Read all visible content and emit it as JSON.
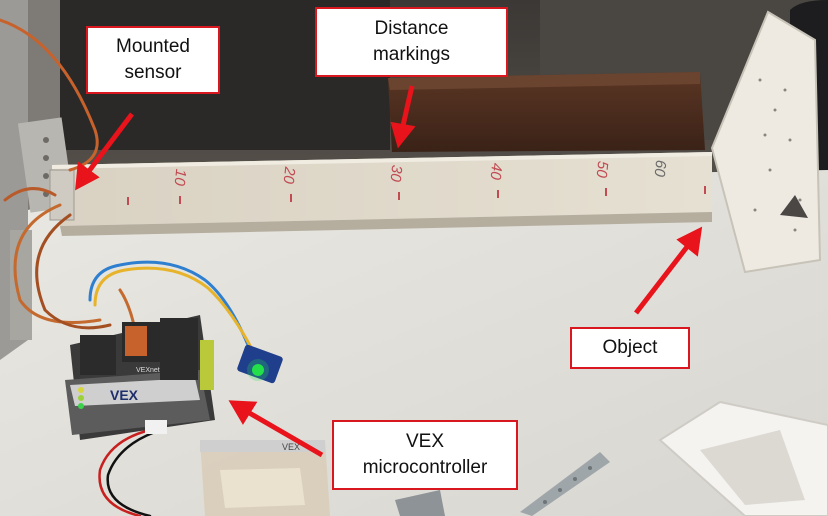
{
  "callouts": {
    "mounted_sensor": "Mounted\nsensor",
    "distance_markings": "Distance\nmarkings",
    "object": "Object",
    "vex_microcontroller": "VEX\nmicrocontroller"
  },
  "ruler_marks": [
    "10",
    "20",
    "30",
    "40",
    "50",
    "60"
  ],
  "device_labels": {
    "controller_brand": "VEX",
    "controller_model": "VEXnet",
    "package_label": "VEX"
  },
  "colors": {
    "callout_border": "#d9171e",
    "arrow": "#e8131b",
    "sensor_led": "#23e04a"
  }
}
